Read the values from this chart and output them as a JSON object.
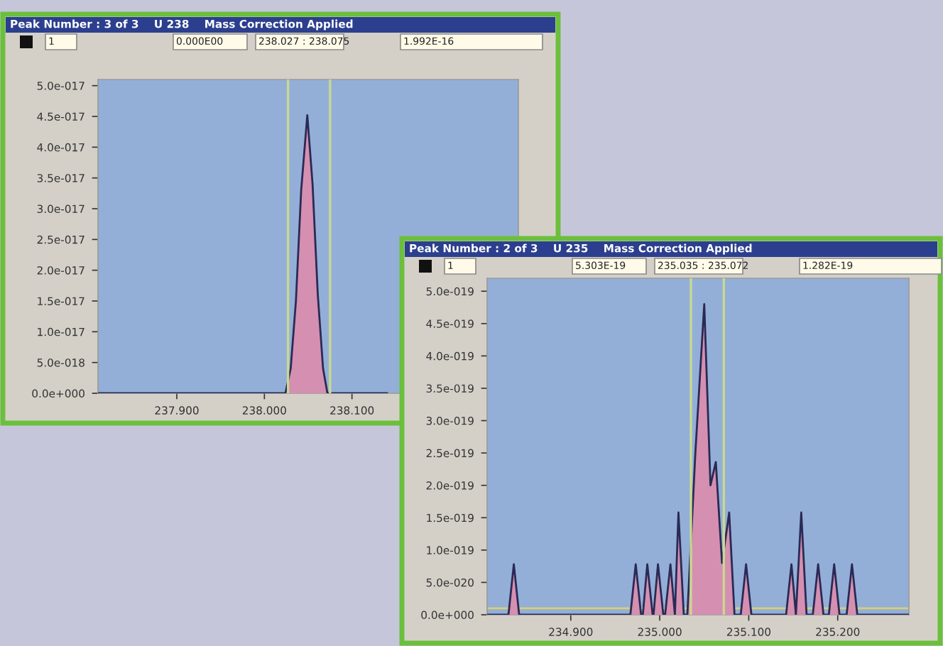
{
  "chart_data": [
    {
      "type": "area",
      "title": "Peak Number : 3 of 3    U 238    Mass Correction Applied",
      "annotations": [
        "1",
        "0.000E00",
        "238.027 : 238.075",
        "1.992E-16"
      ],
      "x": [
        237.81,
        238.024,
        238.03,
        238.036,
        238.042,
        238.049,
        238.055,
        238.061,
        238.067,
        238.072,
        238.14
      ],
      "series": [
        {
          "color": "#d58fb0",
          "values": [
            0,
            0,
            4e-18,
            1.5e-17,
            3.3e-17,
            4.52e-17,
            3.4e-17,
            1.6e-17,
            4e-18,
            0,
            0
          ]
        }
      ],
      "xlim": [
        237.81,
        238.29
      ],
      "ylim": [
        0,
        5.1e-17
      ],
      "xticks": [
        {
          "value": 237.9,
          "label": "237.900"
        },
        {
          "value": 238.0,
          "label": "238.000"
        },
        {
          "value": 238.1,
          "label": "238.100"
        }
      ],
      "yticks": [
        {
          "value": 0,
          "label": "0.0e+000"
        },
        {
          "value": 5e-18,
          "label": "5.0e-018"
        },
        {
          "value": 1e-17,
          "label": "1.0e-017"
        },
        {
          "value": 1.5e-17,
          "label": "1.5e-017"
        },
        {
          "value": 2e-17,
          "label": "2.0e-017"
        },
        {
          "value": 2.5e-17,
          "label": "2.5e-017"
        },
        {
          "value": 3e-17,
          "label": "3.0e-017"
        },
        {
          "value": 3.5e-17,
          "label": "3.5e-017"
        },
        {
          "value": 4e-17,
          "label": "4.0e-017"
        },
        {
          "value": 4.5e-17,
          "label": "4.5e-017"
        },
        {
          "value": 5e-17,
          "label": "5.0e-017"
        }
      ],
      "ref_lines": [
        {
          "axis": "x",
          "value": 238.027,
          "color": "#c9d98f"
        },
        {
          "axis": "x",
          "value": 238.075,
          "color": "#c9d98f"
        }
      ],
      "grid": false,
      "legend": false
    },
    {
      "type": "area",
      "title": "Peak Number : 2 of 3    U 235    Mass Correction Applied",
      "annotations": [
        "1",
        "5.303E-19",
        "235.035 : 235.072",
        "1.282E-19"
      ],
      "x": [
        234.806,
        234.83,
        234.836,
        234.842,
        234.967,
        234.973,
        234.979,
        234.981,
        234.986,
        234.992,
        234.993,
        234.998,
        235.004,
        235.006,
        235.012,
        235.017,
        235.021,
        235.027,
        235.031,
        235.04,
        235.05,
        235.057,
        235.063,
        235.07,
        235.078,
        235.084,
        235.091,
        235.097,
        235.103,
        235.142,
        235.148,
        235.153,
        235.159,
        235.165,
        235.172,
        235.178,
        235.184,
        235.19,
        235.196,
        235.202,
        235.21,
        235.216,
        235.222,
        235.28
      ],
      "series": [
        {
          "color": "#d58fb0",
          "values": [
            0,
            0,
            7.8e-20,
            0,
            0,
            7.8e-20,
            0,
            0,
            7.8e-20,
            0,
            0,
            7.8e-20,
            0,
            0,
            7.8e-20,
            0,
            1.58e-19,
            0,
            0,
            2.5e-19,
            4.8e-19,
            2e-19,
            2.36e-19,
            8e-20,
            1.58e-19,
            0,
            0,
            7.8e-20,
            0,
            0,
            7.8e-20,
            0,
            1.58e-19,
            0,
            0,
            7.8e-20,
            0,
            0,
            7.8e-20,
            0,
            0,
            7.8e-20,
            0,
            0
          ]
        }
      ],
      "xlim": [
        234.806,
        235.28
      ],
      "ylim": [
        0,
        5.2e-19
      ],
      "xticks": [
        {
          "value": 234.9,
          "label": "234.900"
        },
        {
          "value": 235.0,
          "label": "235.000"
        },
        {
          "value": 235.1,
          "label": "235.100"
        },
        {
          "value": 235.2,
          "label": "235.200"
        }
      ],
      "yticks": [
        {
          "value": 0,
          "label": "0.0e+000"
        },
        {
          "value": 5e-20,
          "label": "5.0e-020"
        },
        {
          "value": 1e-19,
          "label": "1.0e-019"
        },
        {
          "value": 1.5e-19,
          "label": "1.5e-019"
        },
        {
          "value": 2e-19,
          "label": "2.0e-019"
        },
        {
          "value": 2.5e-19,
          "label": "2.5e-019"
        },
        {
          "value": 3e-19,
          "label": "3.0e-019"
        },
        {
          "value": 3.5e-19,
          "label": "3.5e-019"
        },
        {
          "value": 4e-19,
          "label": "4.0e-019"
        },
        {
          "value": 4.5e-19,
          "label": "4.5e-019"
        },
        {
          "value": 5e-19,
          "label": "5.0e-019"
        }
      ],
      "ref_lines": [
        {
          "axis": "x",
          "value": 235.035,
          "color": "#c9d98f"
        },
        {
          "axis": "x",
          "value": 235.072,
          "color": "#c9d98f"
        },
        {
          "axis": "y",
          "value": 1e-20,
          "color": "#d8d070"
        }
      ],
      "grid": false,
      "legend": false
    }
  ]
}
